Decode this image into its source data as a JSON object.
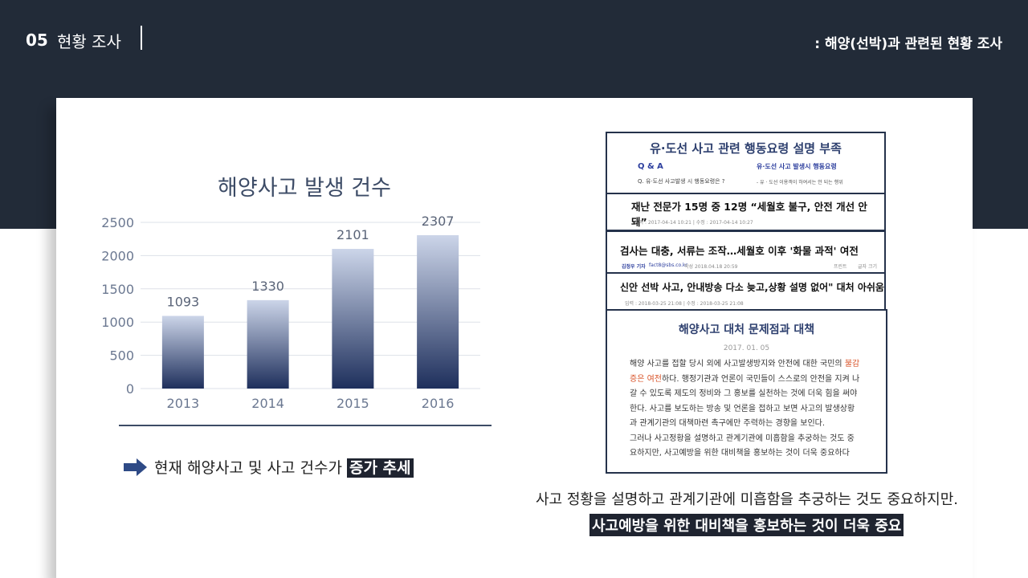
{
  "header": {
    "section_number": "05",
    "section_title": "현황 조사",
    "subtitle": ": 해양(선박)과 관련된 현황 조사"
  },
  "chart_data": {
    "type": "bar",
    "title": "해양사고 발생 건수",
    "categories": [
      "2013",
      "2014",
      "2015",
      "2016"
    ],
    "values": [
      1093,
      1330,
      2101,
      2307
    ],
    "ylim": [
      0,
      2500
    ],
    "yticks": [
      0,
      500,
      1000,
      1500,
      2000,
      2500
    ],
    "grid": true,
    "colors": {
      "bar_top": "#ccd5e9",
      "bar_bottom": "#1e2f5c",
      "axis_text": "#6b7891",
      "label": "#5a6478"
    }
  },
  "trend": {
    "prefix": "현재 해양사고 및 사고 건수가",
    "highlight": "증가 추세"
  },
  "clips": {
    "c1": {
      "headline": "유·도선 사고 관련 행동요령 설명 부족",
      "qa_label": "Q & A",
      "qa_text": "Q. 유·도선 사고발생 시 행동요령은 ?",
      "right_label": "유·도선 사고 발생시 행동요령",
      "right_text": "- 유 · 도선 이용객이 하여서는 안 되는 행위"
    },
    "c2": {
      "headline": "재난 전문가 15명 중 12명 “세월호 불구, 안전 개선 안 돼”",
      "meta": "입력 : 2017-04-14 10:21  |  수정 : 2017-04-14 10:27"
    },
    "c3": {
      "headline": "검사는 대충, 서류는 조작…세월호 이후 '화물 과적' 여전",
      "meta_name": "김정우 기자",
      "meta_email": "fact8@sbs.co.kr",
      "meta": "작성 2018.04.18 20:59",
      "share": "프린트",
      "font": "글자 크기"
    },
    "c4": {
      "headline": "신안 선박 사고, 안내방송 다소 늦고,상황 설명 없어\" 대처 아쉬움",
      "meta": "입력 : 2018-03-25 21:08  |  수정 : 2018-03-25 21:08"
    },
    "c5": {
      "title": "해양사고 대처 문제점과 대책",
      "date": "2017. 01. 05",
      "line1": "해양 사고를 접할 당시 외에 사고발생방지와 안전에 대한 국민의",
      "line1_warn": "불감",
      "line2_warn": "증은 여전",
      "line2": "하다. 행정기관과 언론이 국민들이 스스로의 안전을 지켜 나",
      "line3": "갈 수 있도록 제도의 정비와 그 홍보를 실천하는 것에 더욱 힘을 써야",
      "line4": "한다.  사고를 보도하는 방송 및 언론을 접하고 보면 사고의 발생상황",
      "line5": "과 관계기관의 대책마련 촉구에만 주력하는 경향을 보인다.",
      "line6": "그러나 사고정황을 설명하고 관계기관에 미흡함을 추궁하는 것도 중",
      "line7": "요하지만, 사고예방을 위한 대비책을 홍보하는 것이 더욱 중요하다"
    }
  },
  "caption": {
    "line1": "사고 정황을 설명하고 관계기관에 미흡함을 추궁하는 것도 중요하지만.",
    "line2": "사고예방을 위한 대비책을 홍보하는 것이 더욱 중요"
  }
}
